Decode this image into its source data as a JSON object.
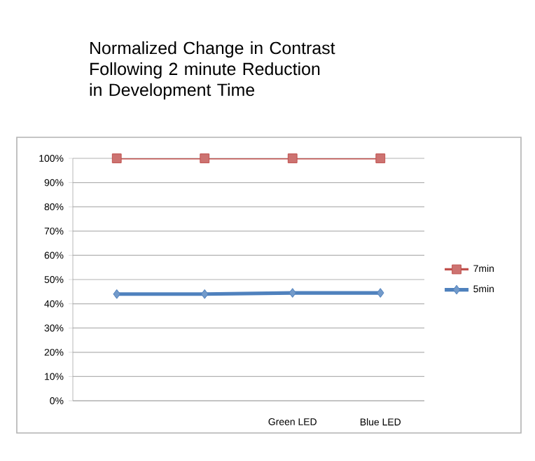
{
  "chart_data": {
    "type": "line",
    "title": "Normalized Change in Contrast Following 2 minute Reduction in Development Time",
    "categories": [
      null,
      null,
      "Green LED",
      "Blue LED"
    ],
    "series": [
      {
        "name": "7min",
        "color": "#c0504d",
        "marker": "square",
        "values": [
          100,
          100,
          100,
          100
        ]
      },
      {
        "name": "5min",
        "color": "#4f81bd",
        "marker": "diamond",
        "values": [
          44,
          44,
          44.5,
          44.5
        ]
      }
    ],
    "ylim": [
      0,
      100
    ],
    "yticks": [
      {
        "value": 0,
        "label": "0%"
      },
      {
        "value": 10,
        "label": "10%"
      },
      {
        "value": 20,
        "label": "20%"
      },
      {
        "value": 30,
        "label": "30%"
      },
      {
        "value": 40,
        "label": "40%"
      },
      {
        "value": 50,
        "label": "50%"
      },
      {
        "value": 60,
        "label": "60%"
      },
      {
        "value": 70,
        "label": "70%"
      },
      {
        "value": 80,
        "label": "80%"
      },
      {
        "value": 90,
        "label": "90%"
      },
      {
        "value": 100,
        "label": "100%"
      }
    ],
    "grid": "y",
    "legend": "right",
    "line_style": "solid"
  }
}
